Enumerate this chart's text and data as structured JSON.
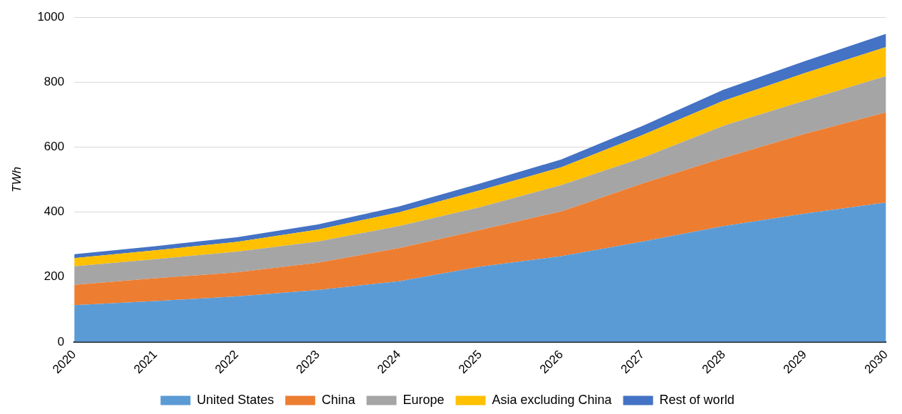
{
  "chart_data": {
    "type": "area",
    "stacked": true,
    "ylabel": "TWh",
    "categories": [
      "2020",
      "2021",
      "2022",
      "2023",
      "2024",
      "2025",
      "2026",
      "2027",
      "2028",
      "2029",
      "2030"
    ],
    "series": [
      {
        "name": "United States",
        "color": "#5b9bd5",
        "values": [
          113,
          126,
          140,
          160,
          187,
          232,
          264,
          309,
          357,
          395,
          429
        ]
      },
      {
        "name": "China",
        "color": "#ed7d31",
        "values": [
          63,
          70,
          74,
          84,
          102,
          113,
          138,
          179,
          210,
          246,
          278
        ]
      },
      {
        "name": "Europe",
        "color": "#a5a5a5",
        "values": [
          57,
          59,
          64,
          65,
          68,
          70,
          81,
          79,
          99,
          102,
          112
        ]
      },
      {
        "name": "Asia excluding China",
        "color": "#ffc000",
        "values": [
          25,
          27,
          30,
          37,
          42,
          52,
          55,
          70,
          77,
          85,
          89
        ]
      },
      {
        "name": "Rest of world",
        "color": "#4472c4",
        "values": [
          12,
          13,
          14,
          16,
          18,
          21,
          24,
          28,
          34,
          37,
          41
        ]
      }
    ],
    "ylim": [
      0,
      1000
    ],
    "yticks": [
      0,
      200,
      400,
      600,
      800,
      1000
    ],
    "grid": "y",
    "legend": "bottom"
  }
}
